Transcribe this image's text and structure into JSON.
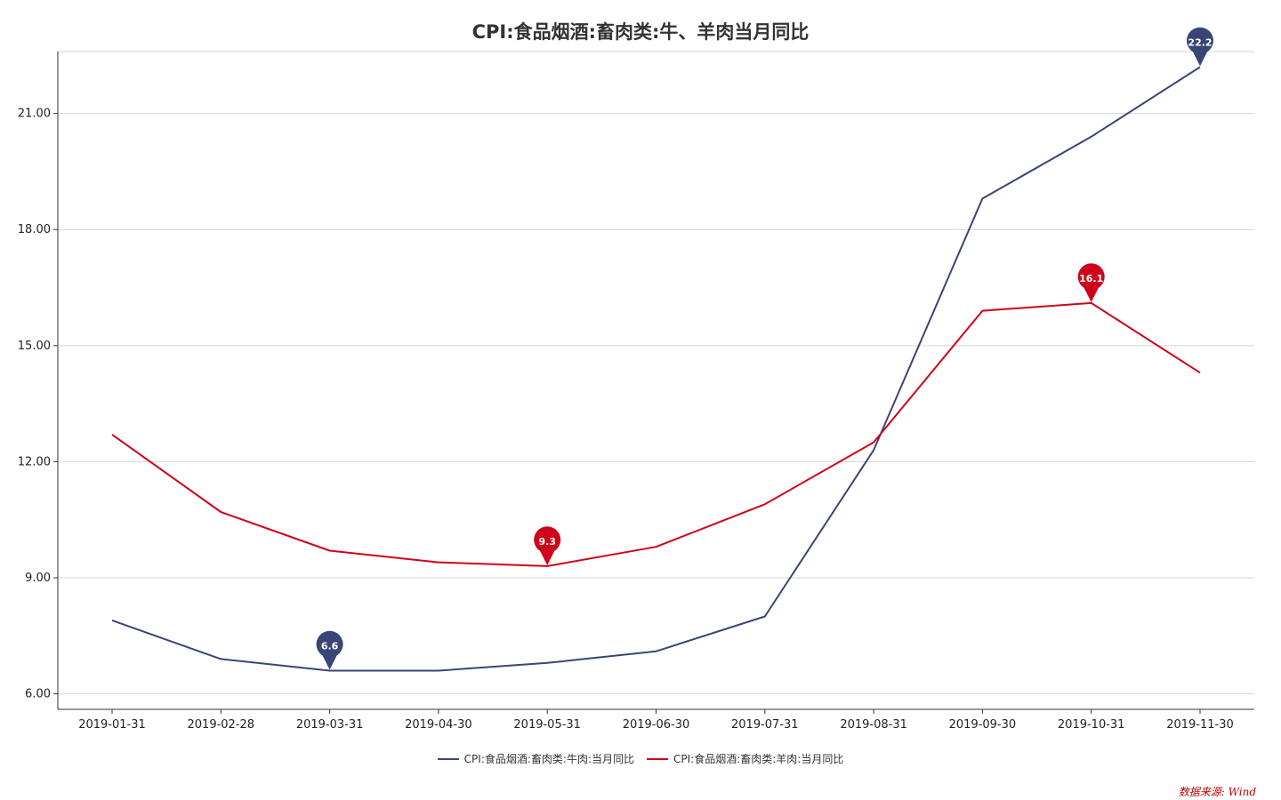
{
  "chart_data": {
    "type": "line",
    "title": "CPI:食品烟酒:畜肉类:牛、羊肉当月同比",
    "categories": [
      "2019-01-31",
      "2019-02-28",
      "2019-03-31",
      "2019-04-30",
      "2019-05-31",
      "2019-06-30",
      "2019-07-31",
      "2019-08-31",
      "2019-09-30",
      "2019-10-31",
      "2019-11-30"
    ],
    "y_ticks": [
      "6.00",
      "9.00",
      "12.00",
      "15.00",
      "18.00",
      "21.00"
    ],
    "ylim": [
      5.6,
      22.6
    ],
    "series": [
      {
        "name": "CPI:食品烟酒:畜肉类:牛肉:当月同比",
        "color": "#3a4577",
        "values": [
          7.9,
          6.9,
          6.6,
          6.6,
          6.8,
          7.1,
          8.0,
          12.3,
          18.8,
          20.4,
          22.2
        ],
        "markers": [
          {
            "index": 2,
            "label": "6.6"
          },
          {
            "index": 10,
            "label": "22.2"
          }
        ]
      },
      {
        "name": "CPI:食品烟酒:畜肉类:羊肉:当月同比",
        "color": "#d0021b",
        "values": [
          12.7,
          10.7,
          9.7,
          9.4,
          9.3,
          9.8,
          10.9,
          12.5,
          15.9,
          16.1,
          14.3
        ],
        "markers": [
          {
            "index": 4,
            "label": "9.3"
          },
          {
            "index": 9,
            "label": "16.1"
          }
        ]
      }
    ],
    "legend_position": "bottom-center",
    "grid": true
  },
  "source": "数据来源: Wind"
}
